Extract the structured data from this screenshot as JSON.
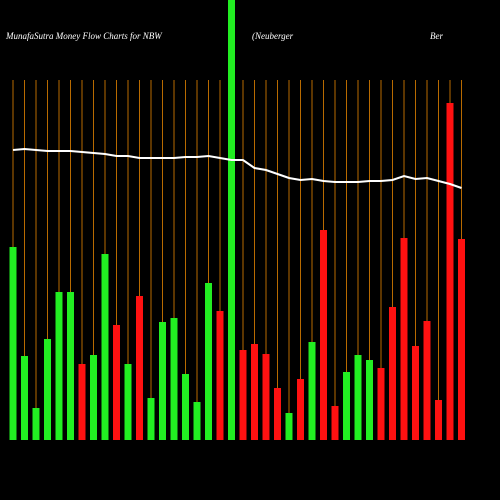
{
  "chart_data": {
    "type": "bar",
    "title": "MunafaSutra  Money Flow  Charts for NBW",
    "subtitle": "(Neuberger",
    "subtitle_end": "Ber",
    "categories": [
      null,
      null,
      null,
      null,
      null,
      null,
      null,
      null,
      null,
      null,
      null,
      null,
      null,
      null,
      null,
      null,
      null,
      null,
      null,
      null,
      null,
      null,
      null,
      null,
      null,
      null,
      null,
      null,
      null,
      null,
      null,
      null,
      null,
      null,
      null,
      null,
      null,
      null,
      null,
      null
    ],
    "ylim": [
      0,
      440
    ],
    "series": [
      {
        "colors": [
          "#22ee22",
          "#22ee22",
          "#22ee22",
          "#22ee22",
          "#22ee22",
          "#22ee22",
          "#ff1111",
          "#22ee22",
          "#22ee22",
          "#ff1111",
          "#22ee22",
          "#ff1111",
          "#22ee22",
          "#22ee22",
          "#22ee22",
          "#22ee22",
          "#22ee22",
          "#22ee22",
          "#ff1111",
          "#22ee22",
          "#ff1111",
          "#ff1111",
          "#ff1111",
          "#ff1111",
          "#22ee22",
          "#ff1111",
          "#22ee22",
          "#ff1111",
          "#ff1111",
          "#22ee22",
          "#22ee22",
          "#22ee22",
          "#ff1111",
          "#ff1111",
          "#ff1111",
          "#ff1111",
          "#ff1111",
          "#ff1111",
          "#ff1111",
          "#ff1111"
        ],
        "values": [
          193,
          84,
          32,
          101,
          148,
          148,
          76,
          85,
          186,
          115,
          76,
          144,
          42,
          118,
          122,
          66,
          38,
          157,
          129,
          440,
          90,
          96,
          86,
          52,
          27,
          61,
          98,
          210,
          34,
          68,
          85,
          80,
          72,
          133,
          202,
          94,
          119,
          40,
          337,
          201
        ]
      },
      {
        "type": "line",
        "color": "#ffffff",
        "values": [
          290,
          291,
          290,
          289,
          289,
          289,
          288,
          287,
          286,
          284,
          284,
          282,
          282,
          282,
          282,
          283,
          283,
          284,
          282,
          280,
          280,
          272,
          270,
          266,
          262,
          260,
          261,
          259,
          258,
          258,
          258,
          259,
          259,
          260,
          264,
          261,
          262,
          259,
          256,
          252
        ]
      }
    ],
    "gridline_color": "#b86a00"
  }
}
